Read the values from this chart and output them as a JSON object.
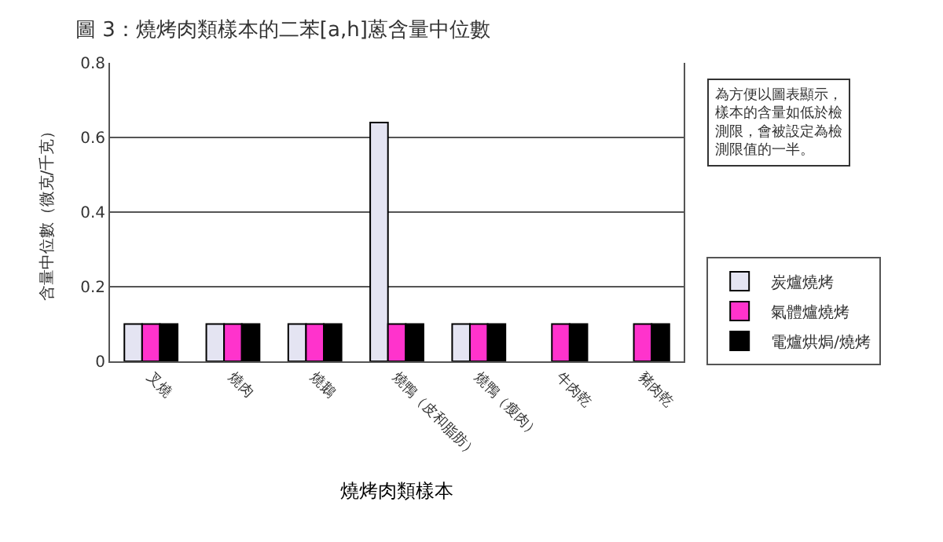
{
  "chart_data": {
    "type": "bar",
    "title": "圖 3：燒烤肉類樣本的二苯[a,h]蒽含量中位數",
    "xlabel": "燒烤肉類樣本",
    "ylabel": "含量中位數（微克/千克）",
    "categories": [
      "叉燒",
      "燒肉",
      "燒鵝",
      "燒鴨（皮和脂肪）",
      "燒鴨（瘦肉）",
      "牛肉乾",
      "豬肉乾"
    ],
    "series": [
      {
        "name": "炭爐燒烤",
        "color": "#e4e4f2",
        "values": [
          0.1,
          0.1,
          0.1,
          0.64,
          0.1,
          null,
          null
        ]
      },
      {
        "name": "氣體爐燒烤",
        "color": "#ff33cc",
        "values": [
          0.1,
          0.1,
          0.1,
          0.1,
          0.1,
          0.1,
          0.1
        ]
      },
      {
        "name": "電爐烘焗/燒烤",
        "color": "#000000",
        "values": [
          0.1,
          0.1,
          0.1,
          0.1,
          0.1,
          0.1,
          0.1
        ]
      }
    ],
    "ylim": [
      0,
      0.8
    ],
    "yticks": [
      0,
      0.2,
      0.4,
      0.6,
      0.8
    ],
    "grid": "y",
    "legend": "right",
    "annotations": [
      "為方便以圖表顯示，樣本的含量如低於檢測限，會被設定為檢測限值的一半。"
    ]
  }
}
